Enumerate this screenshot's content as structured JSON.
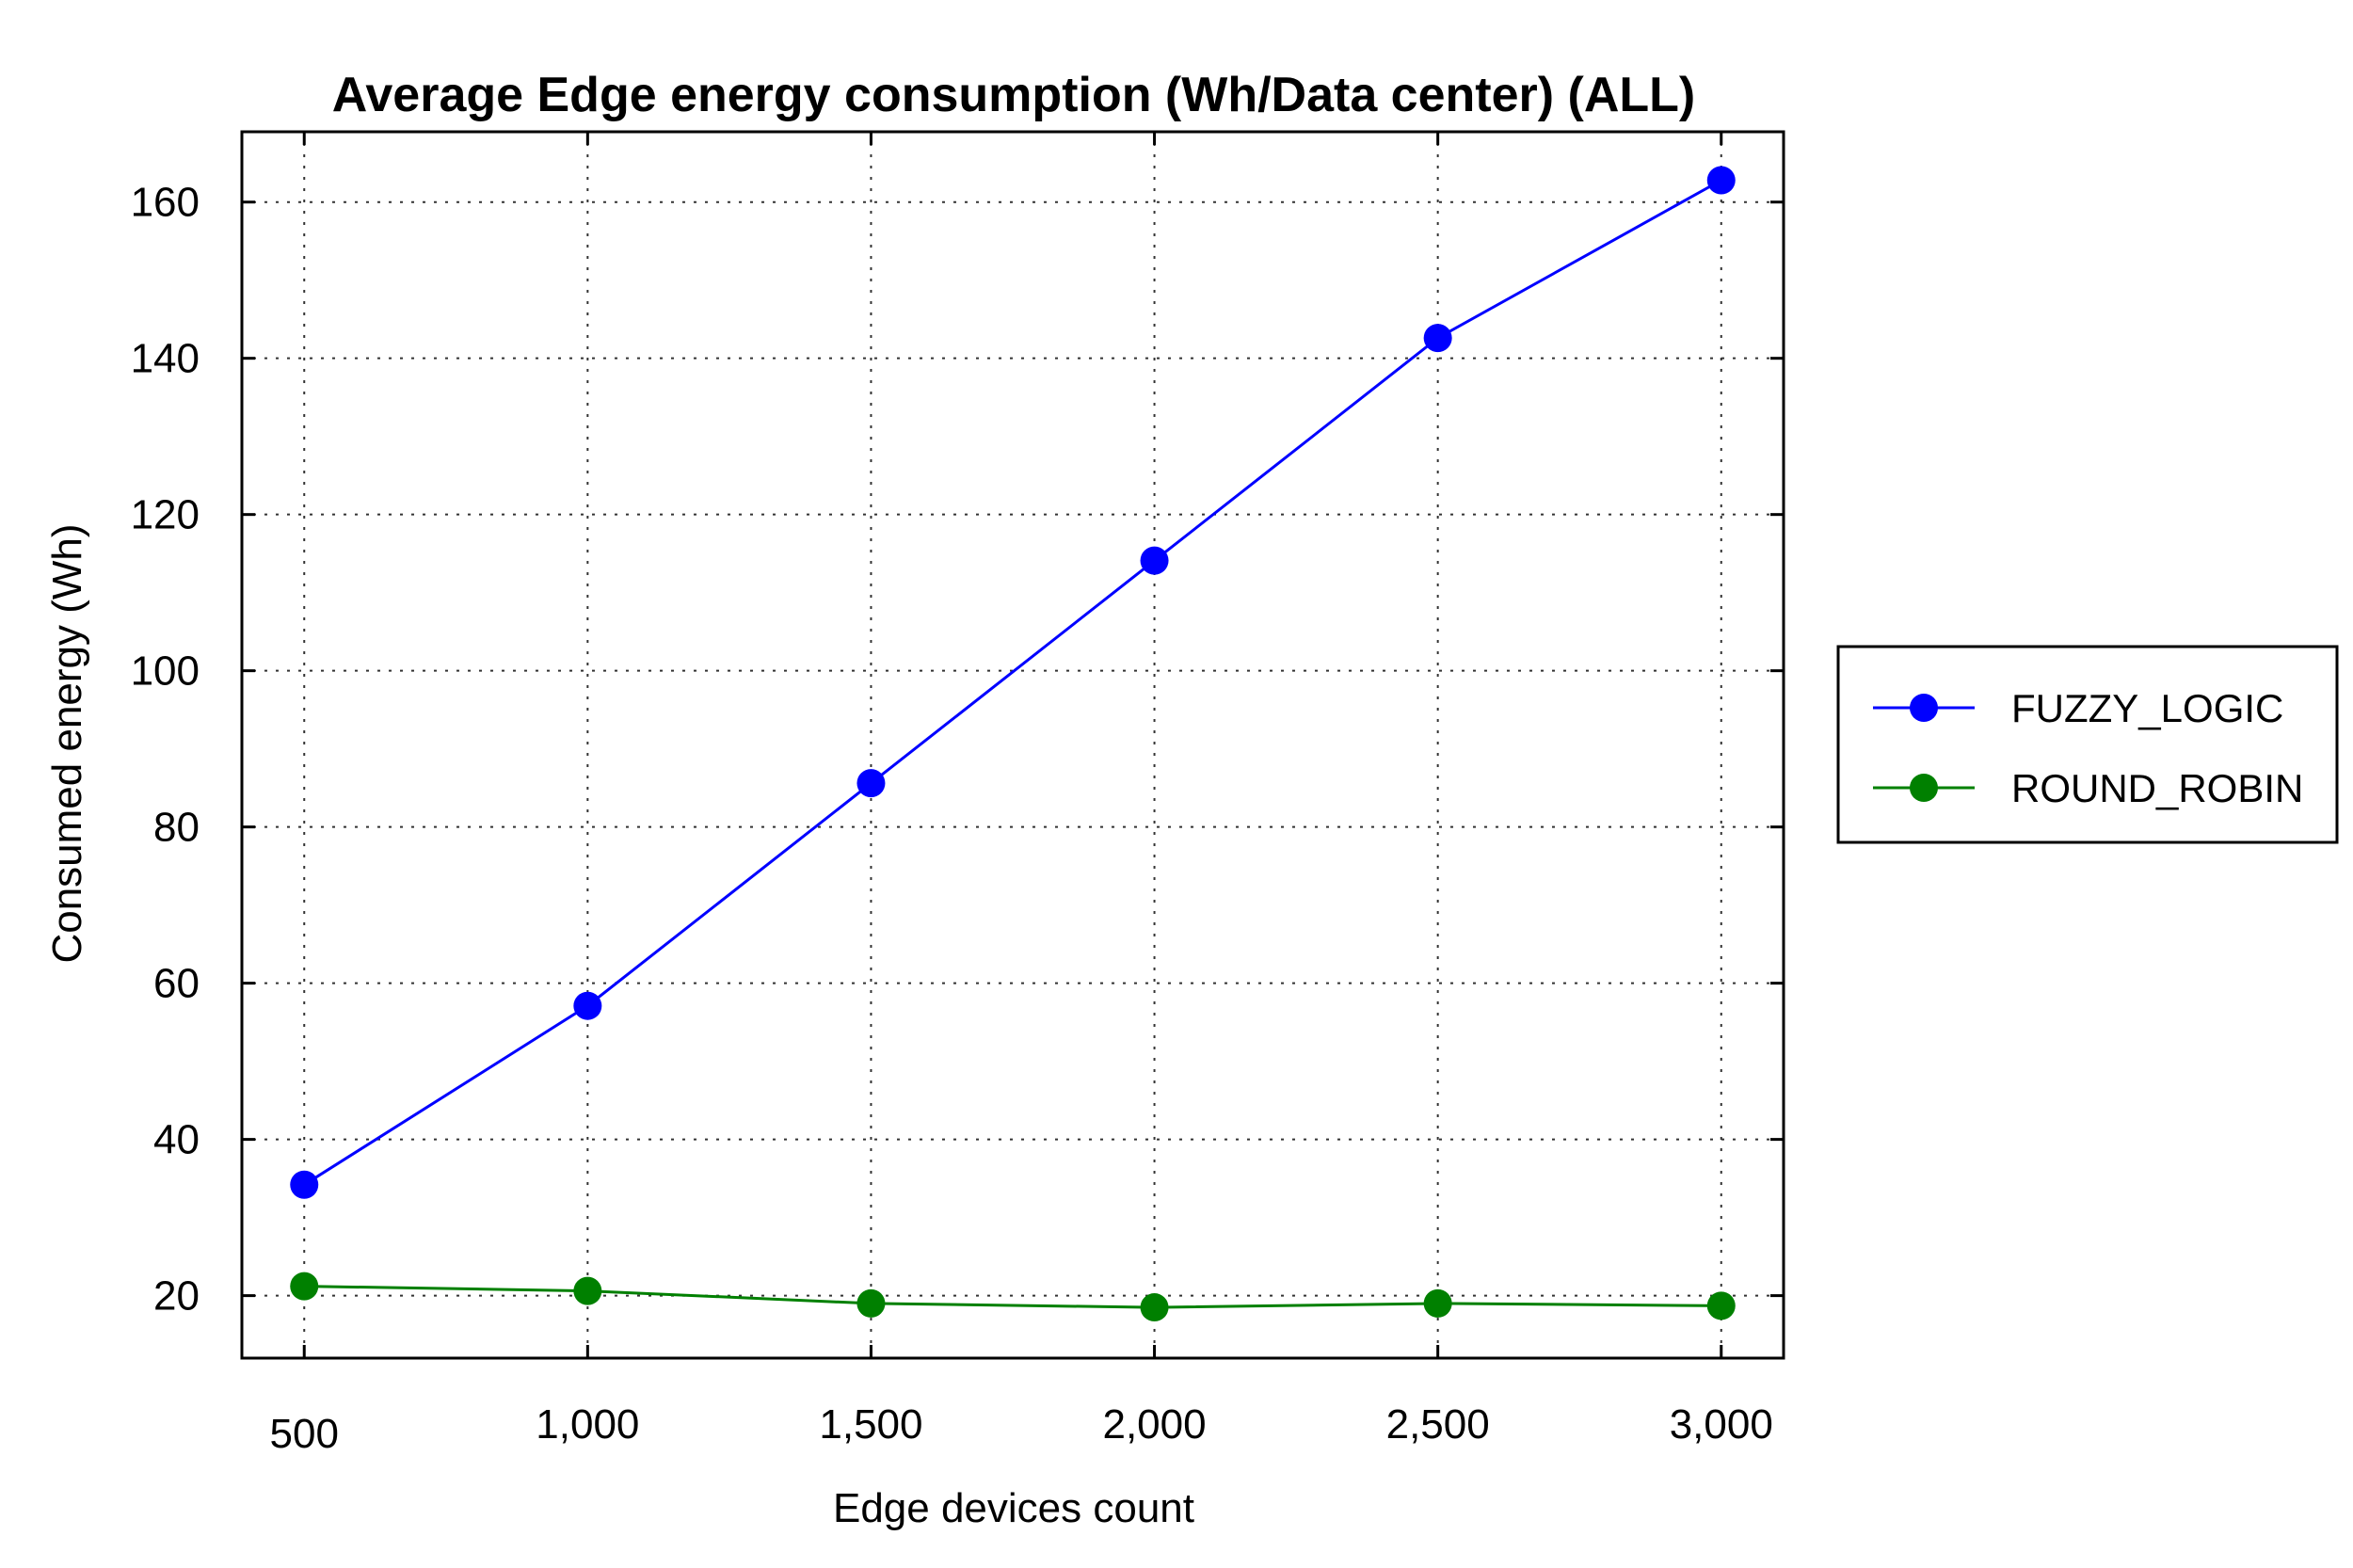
{
  "chart_data": {
    "type": "line",
    "title": "Average Edge energy consumption (Wh/Data center) (ALL)",
    "xlabel": "Edge devices count",
    "ylabel": "Consumed energy (Wh)",
    "x": [
      500,
      1000,
      1500,
      2000,
      2500,
      3000
    ],
    "x_tick_labels": [
      "500",
      "1,000",
      "1,500",
      "2,000",
      "2,500",
      "3,000"
    ],
    "y_ticks": [
      20,
      40,
      60,
      80,
      100,
      120,
      140,
      160
    ],
    "y_tick_labels": [
      "20",
      "40",
      "60",
      "80",
      "100",
      "120",
      "140",
      "160"
    ],
    "xlim": [
      390,
      3110
    ],
    "ylim": [
      12,
      169
    ],
    "grid": true,
    "legend_position": "outside-right",
    "series": [
      {
        "name": "FUZZY_LOGIC",
        "color": "#0000ff",
        "values": [
          34.2,
          57.1,
          85.6,
          114.1,
          142.6,
          162.8
        ]
      },
      {
        "name": " ROUND_ROBIN",
        "color": "#008000",
        "values": [
          21.2,
          20.6,
          19.0,
          18.5,
          19.0,
          18.7
        ]
      }
    ]
  }
}
